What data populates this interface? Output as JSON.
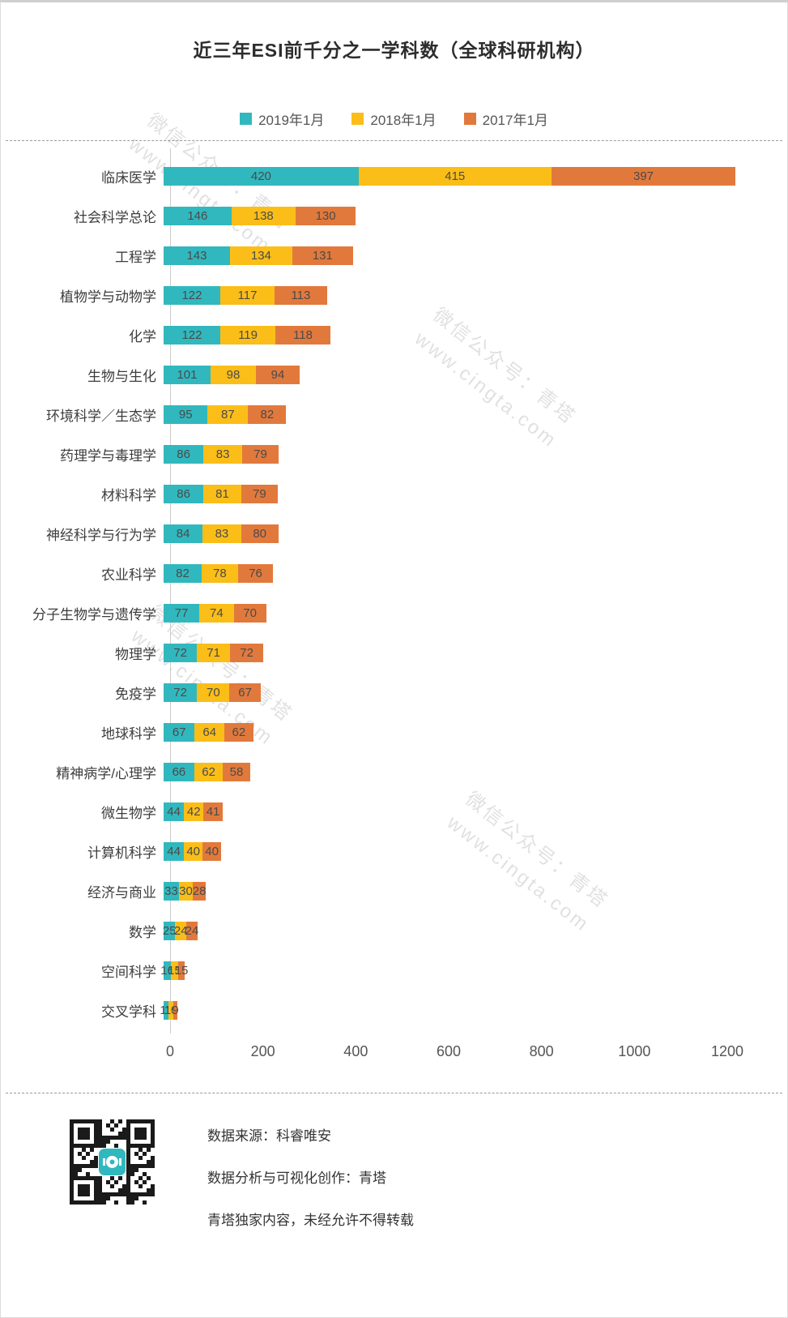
{
  "chart_data": {
    "type": "bar",
    "orientation": "horizontal",
    "stacked": true,
    "title": "近三年ESI前千分之一学科数（全球科研机构）",
    "legend_position": "top",
    "grid": false,
    "categories": [
      "临床医学",
      "社会科学总论",
      "工程学",
      "植物学与动物学",
      "化学",
      "生物与生化",
      "环境科学／生态学",
      "药理学与毒理学",
      "材料科学",
      "神经科学与行为学",
      "农业科学",
      "分子生物学与遗传学",
      "物理学",
      "免疫学",
      "地球科学",
      "精神病学/心理学",
      "微生物学",
      "计算机科学",
      "经济与商业",
      "数学",
      "空间科学",
      "交叉学科"
    ],
    "series": [
      {
        "name": "2019年1月",
        "color": "#31b8be",
        "values": [
          420,
          146,
          143,
          122,
          122,
          101,
          95,
          86,
          86,
          84,
          82,
          77,
          72,
          72,
          67,
          66,
          44,
          44,
          33,
          25,
          16,
          11
        ]
      },
      {
        "name": "2018年1月",
        "color": "#fbbe18",
        "values": [
          415,
          138,
          134,
          117,
          119,
          98,
          87,
          83,
          81,
          83,
          78,
          74,
          71,
          70,
          64,
          62,
          42,
          40,
          30,
          24,
          15,
          10
        ]
      },
      {
        "name": "2017年1月",
        "color": "#e2793c",
        "values": [
          397,
          130,
          131,
          113,
          118,
          94,
          82,
          79,
          79,
          80,
          76,
          70,
          72,
          67,
          62,
          58,
          41,
          40,
          28,
          24,
          15,
          9
        ]
      }
    ],
    "x_axis": {
      "min": 0,
      "max": 1200,
      "ticks": [
        0,
        200,
        400,
        600,
        800,
        1000,
        1200
      ]
    }
  },
  "footer": {
    "source": "数据来源：科睿唯安",
    "credit": "数据分析与可视化创作：青塔",
    "notice": "青塔独家内容，未经允许不得转载"
  },
  "watermark": {
    "line1": "微信公众号：青塔",
    "line2": "www.cingta.com"
  },
  "colors": {
    "teal": "#31b8be",
    "yellow": "#fbbe18",
    "orange": "#e2793c"
  }
}
